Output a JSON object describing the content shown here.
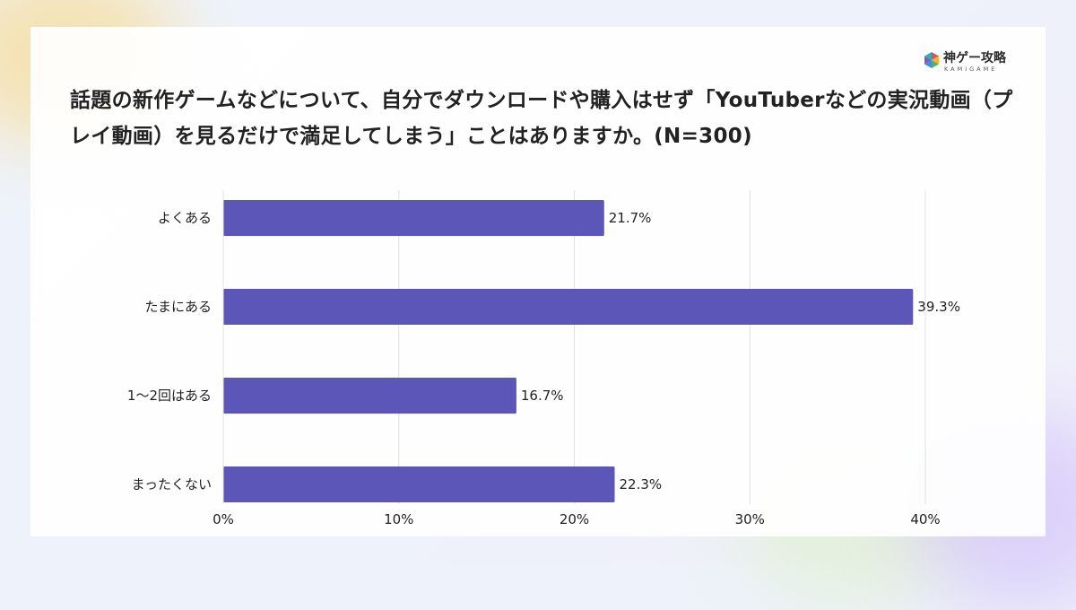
{
  "brand": {
    "name": "神ゲー攻略",
    "sub": "KAMIGAME"
  },
  "colors": {
    "bar": "#5c56b9",
    "grid": "#e1e1e1",
    "text": "#222222"
  },
  "chart_data": {
    "type": "bar",
    "orientation": "horizontal",
    "title": "話題の新作ゲームなどについて、自分でダウンロードや購入はせず「YouTuberなどの実況動画（プレイ動画）を見るだけで満足してしまう」ことはありますか。(N=300)",
    "categories": [
      "よくある",
      "たまにある",
      "1～2回はある",
      "まったくない"
    ],
    "values": [
      21.7,
      39.3,
      16.7,
      22.3
    ],
    "value_labels": [
      "21.7%",
      "39.3%",
      "16.7%",
      "22.3%"
    ],
    "xlim": [
      0,
      40
    ],
    "xticks": [
      0,
      10,
      20,
      30,
      40
    ],
    "xtick_labels": [
      "0%",
      "10%",
      "20%",
      "30%",
      "40%"
    ],
    "grid": true
  }
}
